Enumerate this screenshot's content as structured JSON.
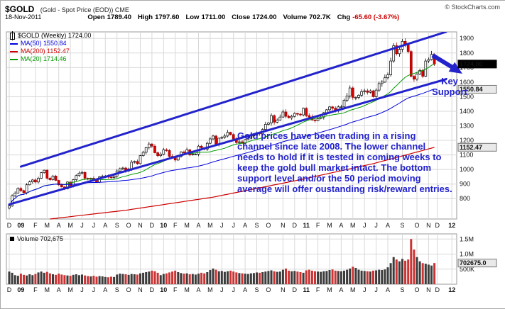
{
  "header": {
    "symbol": "$GOLD",
    "description": "(Gold - Spot Price (EOD)) CME",
    "credit": "© StockCharts.com",
    "date": "18-Nov-2011",
    "quote_items": [
      {
        "label": "Open",
        "value": "1789.40"
      },
      {
        "label": "High",
        "value": "1797.60"
      },
      {
        "label": "Low",
        "value": "1711.00"
      },
      {
        "label": "Close",
        "value": "1724.00"
      },
      {
        "label": "Volume",
        "value": "702.7K"
      },
      {
        "label": "Chg",
        "value": "-65.60 (-3.67%)",
        "negative": true
      }
    ]
  },
  "legend": {
    "rows": [
      {
        "text": "$GOLD (Weekly) 1724.00",
        "color": "#000000",
        "swatch": "candle"
      },
      {
        "text": "MA(50) 1550.84",
        "color": "#0000dd",
        "swatch": "line"
      },
      {
        "text": "MA(200) 1152.47",
        "color": "#cc0000",
        "swatch": "line"
      },
      {
        "text": "MA(20) 1714.46",
        "color": "#009900",
        "swatch": "line"
      }
    ]
  },
  "annotation": {
    "text": "Gold prices have been trading in a rising channel since late 2008. The lower channel needs to hold if it is tested in coming weeks to keep the gold bull market intact. The bottom support level and/or the 50 period moving average will offer oustanding risk/reward entries.",
    "key_support": "Key\nSupport",
    "color": "#2222cc"
  },
  "volume_panel": {
    "legend": "Volume 702,675"
  },
  "chart_data": {
    "type": "candlestick",
    "title": "$GOLD - Gold Spot Price (EOD) CME, Weekly",
    "date": "18-Nov-2011",
    "price_axis": {
      "ticks": [
        1900,
        1800,
        1700,
        1600,
        1500,
        1400,
        1300,
        1200,
        1100,
        1000,
        900,
        800
      ],
      "ylim": [
        660,
        1940
      ]
    },
    "x_axis": {
      "months": [
        {
          "label": "D",
          "week": 0
        },
        {
          "label": "09",
          "week": 4,
          "bold": true
        },
        {
          "label": "F",
          "week": 9
        },
        {
          "label": "M",
          "week": 13
        },
        {
          "label": "A",
          "week": 17
        },
        {
          "label": "M",
          "week": 21
        },
        {
          "label": "J",
          "week": 25
        },
        {
          "label": "J",
          "week": 29
        },
        {
          "label": "A",
          "week": 33
        },
        {
          "label": "S",
          "week": 37
        },
        {
          "label": "O",
          "week": 41
        },
        {
          "label": "N",
          "week": 45
        },
        {
          "label": "D",
          "week": 49
        },
        {
          "label": "10",
          "week": 53,
          "bold": true
        },
        {
          "label": "F",
          "week": 57
        },
        {
          "label": "M",
          "week": 61
        },
        {
          "label": "A",
          "week": 65
        },
        {
          "label": "M",
          "week": 69
        },
        {
          "label": "J",
          "week": 73
        },
        {
          "label": "J",
          "week": 77
        },
        {
          "label": "A",
          "week": 81
        },
        {
          "label": "S",
          "week": 85
        },
        {
          "label": "O",
          "week": 89
        },
        {
          "label": "N",
          "week": 94
        },
        {
          "label": "D",
          "week": 98
        },
        {
          "label": "11",
          "week": 102,
          "bold": true
        },
        {
          "label": "F",
          "week": 106
        },
        {
          "label": "M",
          "week": 110
        },
        {
          "label": "A",
          "week": 114
        },
        {
          "label": "M",
          "week": 118
        },
        {
          "label": "J",
          "week": 122
        },
        {
          "label": "J",
          "week": 126
        },
        {
          "label": "A",
          "week": 130
        },
        {
          "label": "S",
          "week": 135
        },
        {
          "label": "O",
          "week": 140
        },
        {
          "label": "N",
          "week": 144
        },
        {
          "label": "D",
          "week": 147
        },
        {
          "label": "12",
          "week": 152,
          "bold": true
        }
      ]
    },
    "series": {
      "weekly_close": [
        750,
        820,
        838,
        870,
        855,
        840,
        895,
        915,
        928,
        914,
        940,
        978,
        995,
        940,
        930,
        955,
        925,
        895,
        880,
        868,
        914,
        888,
        930,
        958,
        975,
        980,
        940,
        935,
        940,
        930,
        912,
        950,
        953,
        955,
        948,
        945,
        955,
        990,
        1005,
        1010,
        990,
        1004,
        1050,
        1055,
        1040,
        1095,
        1118,
        1150,
        1175,
        1160,
        1115,
        1095,
        1105,
        1135,
        1130,
        1090,
        1080,
        1065,
        1090,
        1120,
        1115,
        1135,
        1100,
        1105,
        1105,
        1160,
        1150,
        1140,
        1180,
        1210,
        1230,
        1175,
        1215,
        1220,
        1230,
        1255,
        1240,
        1210,
        1185,
        1190,
        1180,
        1205,
        1215,
        1230,
        1235,
        1250,
        1245,
        1275,
        1310,
        1320,
        1370,
        1325,
        1340,
        1360,
        1395,
        1365,
        1355,
        1365,
        1385,
        1380,
        1375,
        1420,
        1370,
        1360,
        1340,
        1335,
        1350,
        1360,
        1390,
        1410,
        1430,
        1420,
        1405,
        1430,
        1430,
        1475,
        1505,
        1560,
        1495,
        1495,
        1510,
        1535,
        1540,
        1530,
        1540,
        1500,
        1545,
        1590,
        1600,
        1630,
        1650,
        1745,
        1850,
        1795,
        1825,
        1880,
        1855,
        1810,
        1640,
        1620,
        1655,
        1680,
        1640,
        1745,
        1755,
        1790,
        1724
      ],
      "volume_k": [
        420,
        380,
        300,
        280,
        350,
        310,
        290,
        330,
        300,
        340,
        390,
        420,
        380,
        410,
        360,
        330,
        310,
        350,
        320,
        300,
        290,
        280,
        310,
        330,
        300,
        320,
        290,
        270,
        260,
        280,
        250,
        270,
        260,
        240,
        230,
        250,
        240,
        320,
        350,
        340,
        330,
        310,
        340,
        330,
        320,
        360,
        380,
        400,
        420,
        450,
        430,
        380,
        300,
        340,
        360,
        390,
        420,
        450,
        400,
        370,
        350,
        360,
        330,
        340,
        320,
        350,
        380,
        360,
        400,
        470,
        520,
        480,
        430,
        440,
        410,
        430,
        450,
        420,
        390,
        370,
        360,
        350,
        340,
        360,
        370,
        390,
        380,
        400,
        420,
        440,
        460,
        430,
        410,
        420,
        480,
        520,
        450,
        430,
        440,
        420,
        400,
        380,
        460,
        480,
        450,
        430,
        420,
        410,
        430,
        440,
        470,
        490,
        450,
        440,
        430,
        450,
        480,
        520,
        580,
        540,
        480,
        450,
        440,
        430,
        420,
        450,
        460,
        480,
        470,
        490,
        560,
        700,
        900,
        820,
        760,
        840,
        780,
        820,
        1500,
        1150,
        900,
        760,
        700,
        680,
        650,
        620,
        702.675
      ],
      "last_week_ohlc": {
        "open": 1789.4,
        "high": 1797.6,
        "low": 1711.0,
        "close": 1724.0
      }
    },
    "volume_axis": {
      "max_k": 1600,
      "ticks": [
        {
          "k": 1500,
          "label": "1.5M"
        },
        {
          "k": 1000,
          "label": "1.0M"
        },
        {
          "k": 500,
          "label": "500K"
        }
      ],
      "callout": {
        "k": 702.675,
        "label": "702675.0"
      }
    },
    "overlays": {
      "ma20": {
        "period": 20,
        "last_value": 1714.46,
        "color": "#009900"
      },
      "ma50": {
        "period": 50,
        "last_value": 1550.84,
        "color": "#0000dd"
      },
      "ma200": {
        "period": 200,
        "last_value": 1152.47,
        "color": "#cc0000",
        "anchors": [
          [
            14,
            660
          ],
          [
            40,
            720
          ],
          [
            70,
            810
          ],
          [
            100,
            930
          ],
          [
            125,
            1040
          ],
          [
            146,
            1152
          ]
        ]
      }
    },
    "channel": {
      "color": "#2323cc",
      "upper": [
        [
          4,
          1020
        ],
        [
          150,
          1945
        ]
      ],
      "lower": [
        [
          0,
          760
        ],
        [
          150,
          1620
        ]
      ]
    },
    "axis_callouts": [
      {
        "label": "1724.00",
        "price": 1724.0,
        "style": "last"
      },
      {
        "label": "1550.84",
        "price": 1550.84,
        "style": "overlay"
      },
      {
        "label": "1152.47",
        "price": 1152.47,
        "style": "overlay"
      }
    ],
    "candle_colors": {
      "up_fill": "#ffffff",
      "up_stroke": "#000000",
      "down_fill": "#dd0000",
      "down_stroke": "#990000"
    },
    "volume_colors": {
      "up": "#3c3c3c",
      "down": "#cc3333"
    },
    "grid": {
      "color": "#d8d8d8",
      "on": true
    },
    "legend_position": "top-left"
  }
}
